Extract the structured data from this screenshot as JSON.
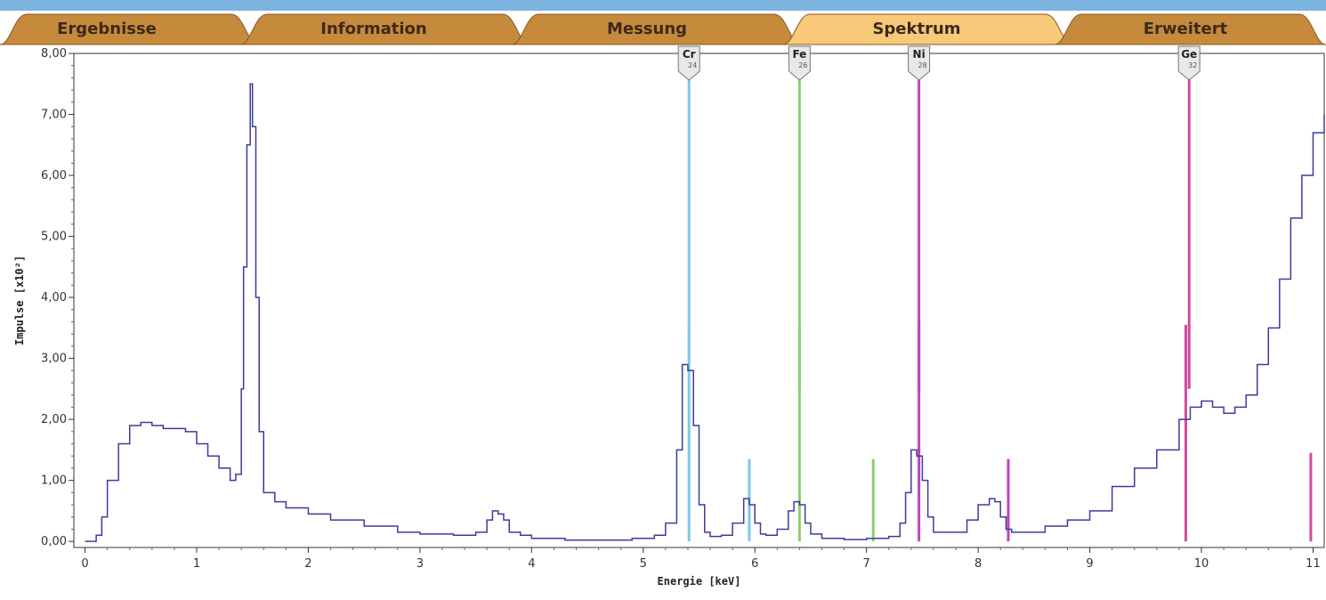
{
  "tabs": [
    {
      "label": "Ergebnisse",
      "active": false
    },
    {
      "label": "Information",
      "active": false
    },
    {
      "label": "Messung",
      "active": false
    },
    {
      "label": "Spektrum",
      "active": true
    },
    {
      "label": "Erweitert",
      "active": false
    }
  ],
  "colors": {
    "tab_inactive": "#c58a3c",
    "tab_active": "#f7c978",
    "spectrum": "#3c3c9c",
    "cr": "#7fc8e8",
    "fe": "#8dcf74",
    "ni": "#c040c0",
    "ge": "#d04aa0"
  },
  "chart_data": {
    "type": "line",
    "xlabel": "Energie [keV]",
    "ylabel": "Impulse [x10²]",
    "xlim": [
      -0.1,
      11.1
    ],
    "ylim": [
      -0.1,
      8.0
    ],
    "xticks": [
      0,
      1,
      2,
      3,
      4,
      5,
      6,
      7,
      8,
      9,
      10,
      11
    ],
    "yticks": [
      0,
      1,
      2,
      3,
      4,
      5,
      6,
      7,
      8
    ],
    "ytick_labels": [
      "0,00",
      "1,00",
      "2,00",
      "3,00",
      "4,00",
      "5,00",
      "6,00",
      "7,00",
      "8,00"
    ],
    "spectrum": {
      "x": [
        0.0,
        0.05,
        0.1,
        0.15,
        0.2,
        0.3,
        0.4,
        0.5,
        0.6,
        0.7,
        0.8,
        0.9,
        1.0,
        1.1,
        1.2,
        1.3,
        1.35,
        1.4,
        1.42,
        1.45,
        1.48,
        1.5,
        1.53,
        1.56,
        1.6,
        1.7,
        1.8,
        2.0,
        2.2,
        2.5,
        2.8,
        3.0,
        3.3,
        3.5,
        3.6,
        3.65,
        3.7,
        3.75,
        3.8,
        3.9,
        4.0,
        4.3,
        4.6,
        4.9,
        5.1,
        5.2,
        5.3,
        5.35,
        5.4,
        5.45,
        5.5,
        5.55,
        5.6,
        5.7,
        5.8,
        5.9,
        5.95,
        6.0,
        6.05,
        6.1,
        6.2,
        6.3,
        6.35,
        6.4,
        6.45,
        6.5,
        6.6,
        6.8,
        7.0,
        7.2,
        7.3,
        7.35,
        7.4,
        7.45,
        7.5,
        7.55,
        7.6,
        7.7,
        7.9,
        8.0,
        8.1,
        8.15,
        8.2,
        8.25,
        8.3,
        8.4,
        8.6,
        8.8,
        9.0,
        9.2,
        9.4,
        9.6,
        9.8,
        9.9,
        10.0,
        10.1,
        10.2,
        10.3,
        10.4,
        10.5,
        10.6,
        10.7,
        10.8,
        10.9,
        11.0,
        11.1
      ],
      "y": [
        0.0,
        0.0,
        0.1,
        0.4,
        1.0,
        1.6,
        1.9,
        1.95,
        1.9,
        1.85,
        1.85,
        1.8,
        1.6,
        1.4,
        1.2,
        1.0,
        1.1,
        2.5,
        4.5,
        6.5,
        7.5,
        6.8,
        4.0,
        1.8,
        0.8,
        0.65,
        0.55,
        0.45,
        0.35,
        0.25,
        0.15,
        0.12,
        0.1,
        0.15,
        0.35,
        0.5,
        0.45,
        0.35,
        0.15,
        0.1,
        0.05,
        0.02,
        0.02,
        0.05,
        0.1,
        0.3,
        1.5,
        2.9,
        2.8,
        1.9,
        0.6,
        0.15,
        0.08,
        0.1,
        0.3,
        0.7,
        0.6,
        0.3,
        0.12,
        0.1,
        0.2,
        0.5,
        0.65,
        0.6,
        0.3,
        0.12,
        0.05,
        0.03,
        0.05,
        0.08,
        0.3,
        0.8,
        1.5,
        1.4,
        1.0,
        0.4,
        0.15,
        0.15,
        0.35,
        0.6,
        0.7,
        0.65,
        0.4,
        0.2,
        0.15,
        0.15,
        0.25,
        0.35,
        0.5,
        0.9,
        1.2,
        1.5,
        2.0,
        2.2,
        2.3,
        2.2,
        2.1,
        2.2,
        2.4,
        2.9,
        3.5,
        4.3,
        5.3,
        6.0,
        6.7,
        7.0
      ]
    },
    "element_markers": [
      {
        "symbol": "Cr",
        "number": "24",
        "x": 5.41,
        "color_key": "cr"
      },
      {
        "symbol": "Fe",
        "number": "26",
        "x": 6.4,
        "color_key": "fe"
      },
      {
        "symbol": "Ni",
        "number": "28",
        "x": 7.47,
        "color_key": "ni"
      },
      {
        "symbol": "Ge",
        "number": "32",
        "x": 9.89,
        "color_key": "ge"
      }
    ],
    "element_lines": [
      {
        "x": 5.41,
        "height": 3.55,
        "color_key": "cr"
      },
      {
        "x": 5.95,
        "height": 1.35,
        "color_key": "cr"
      },
      {
        "x": 6.4,
        "height": 3.55,
        "color_key": "fe"
      },
      {
        "x": 7.06,
        "height": 1.35,
        "color_key": "fe"
      },
      {
        "x": 7.47,
        "height": 3.55,
        "color_key": "ni"
      },
      {
        "x": 8.27,
        "height": 1.35,
        "color_key": "ni"
      },
      {
        "x": 9.86,
        "height": 3.55,
        "color_key": "ge"
      },
      {
        "x": 10.98,
        "height": 1.45,
        "color_key": "ge"
      }
    ]
  }
}
